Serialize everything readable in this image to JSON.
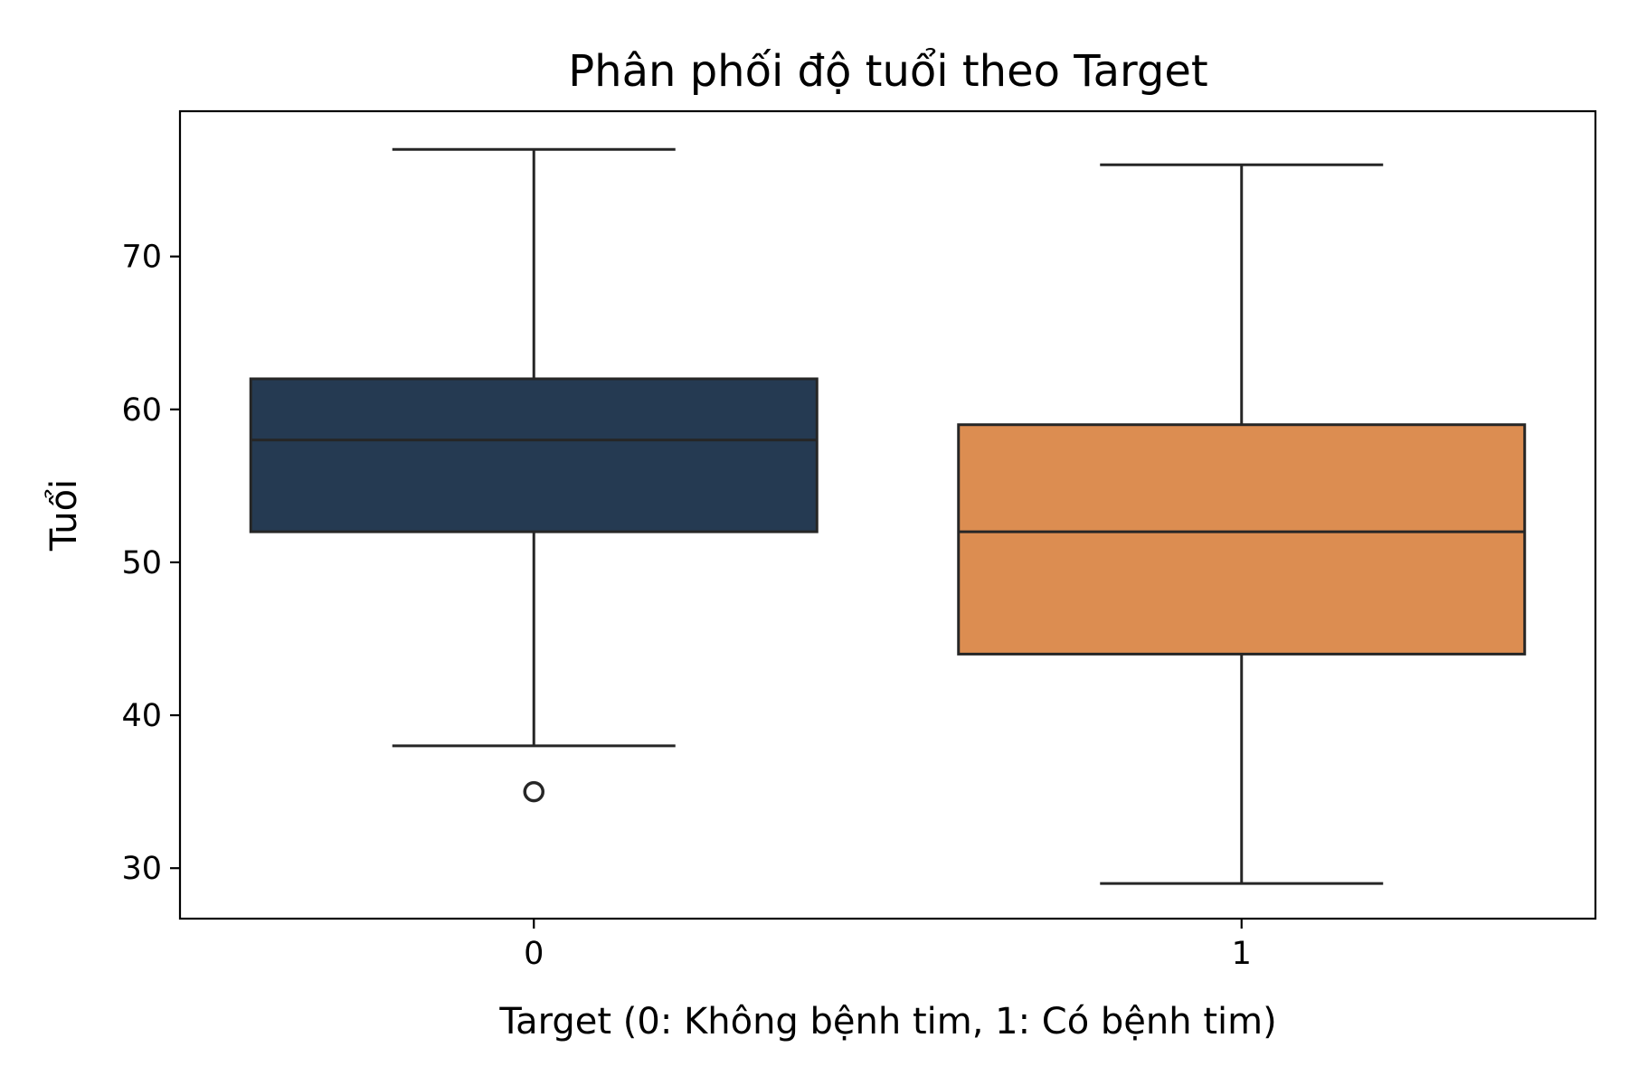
{
  "chart_data": {
    "type": "box",
    "title": "Phân phối độ tuổi theo Target",
    "xlabel": "Target (0: Không bệnh tim, 1: Có bệnh tim)",
    "ylabel": "Tuổi",
    "categories": [
      "0",
      "1"
    ],
    "ylim": [
      26.7,
      79.5
    ],
    "yticks": [
      30,
      40,
      50,
      60,
      70
    ],
    "grid": false,
    "boxes": [
      {
        "category": "0",
        "whisker_low": 38,
        "q1": 52,
        "median": 58,
        "q3": 62,
        "whisker_high": 77,
        "outliers": [
          35
        ],
        "color": "#253a52"
      },
      {
        "category": "1",
        "whisker_low": 29,
        "q1": 44,
        "median": 52,
        "q3": 59,
        "whisker_high": 76,
        "outliers": [],
        "color": "#dc8d51"
      }
    ],
    "line_color": "#262626"
  }
}
